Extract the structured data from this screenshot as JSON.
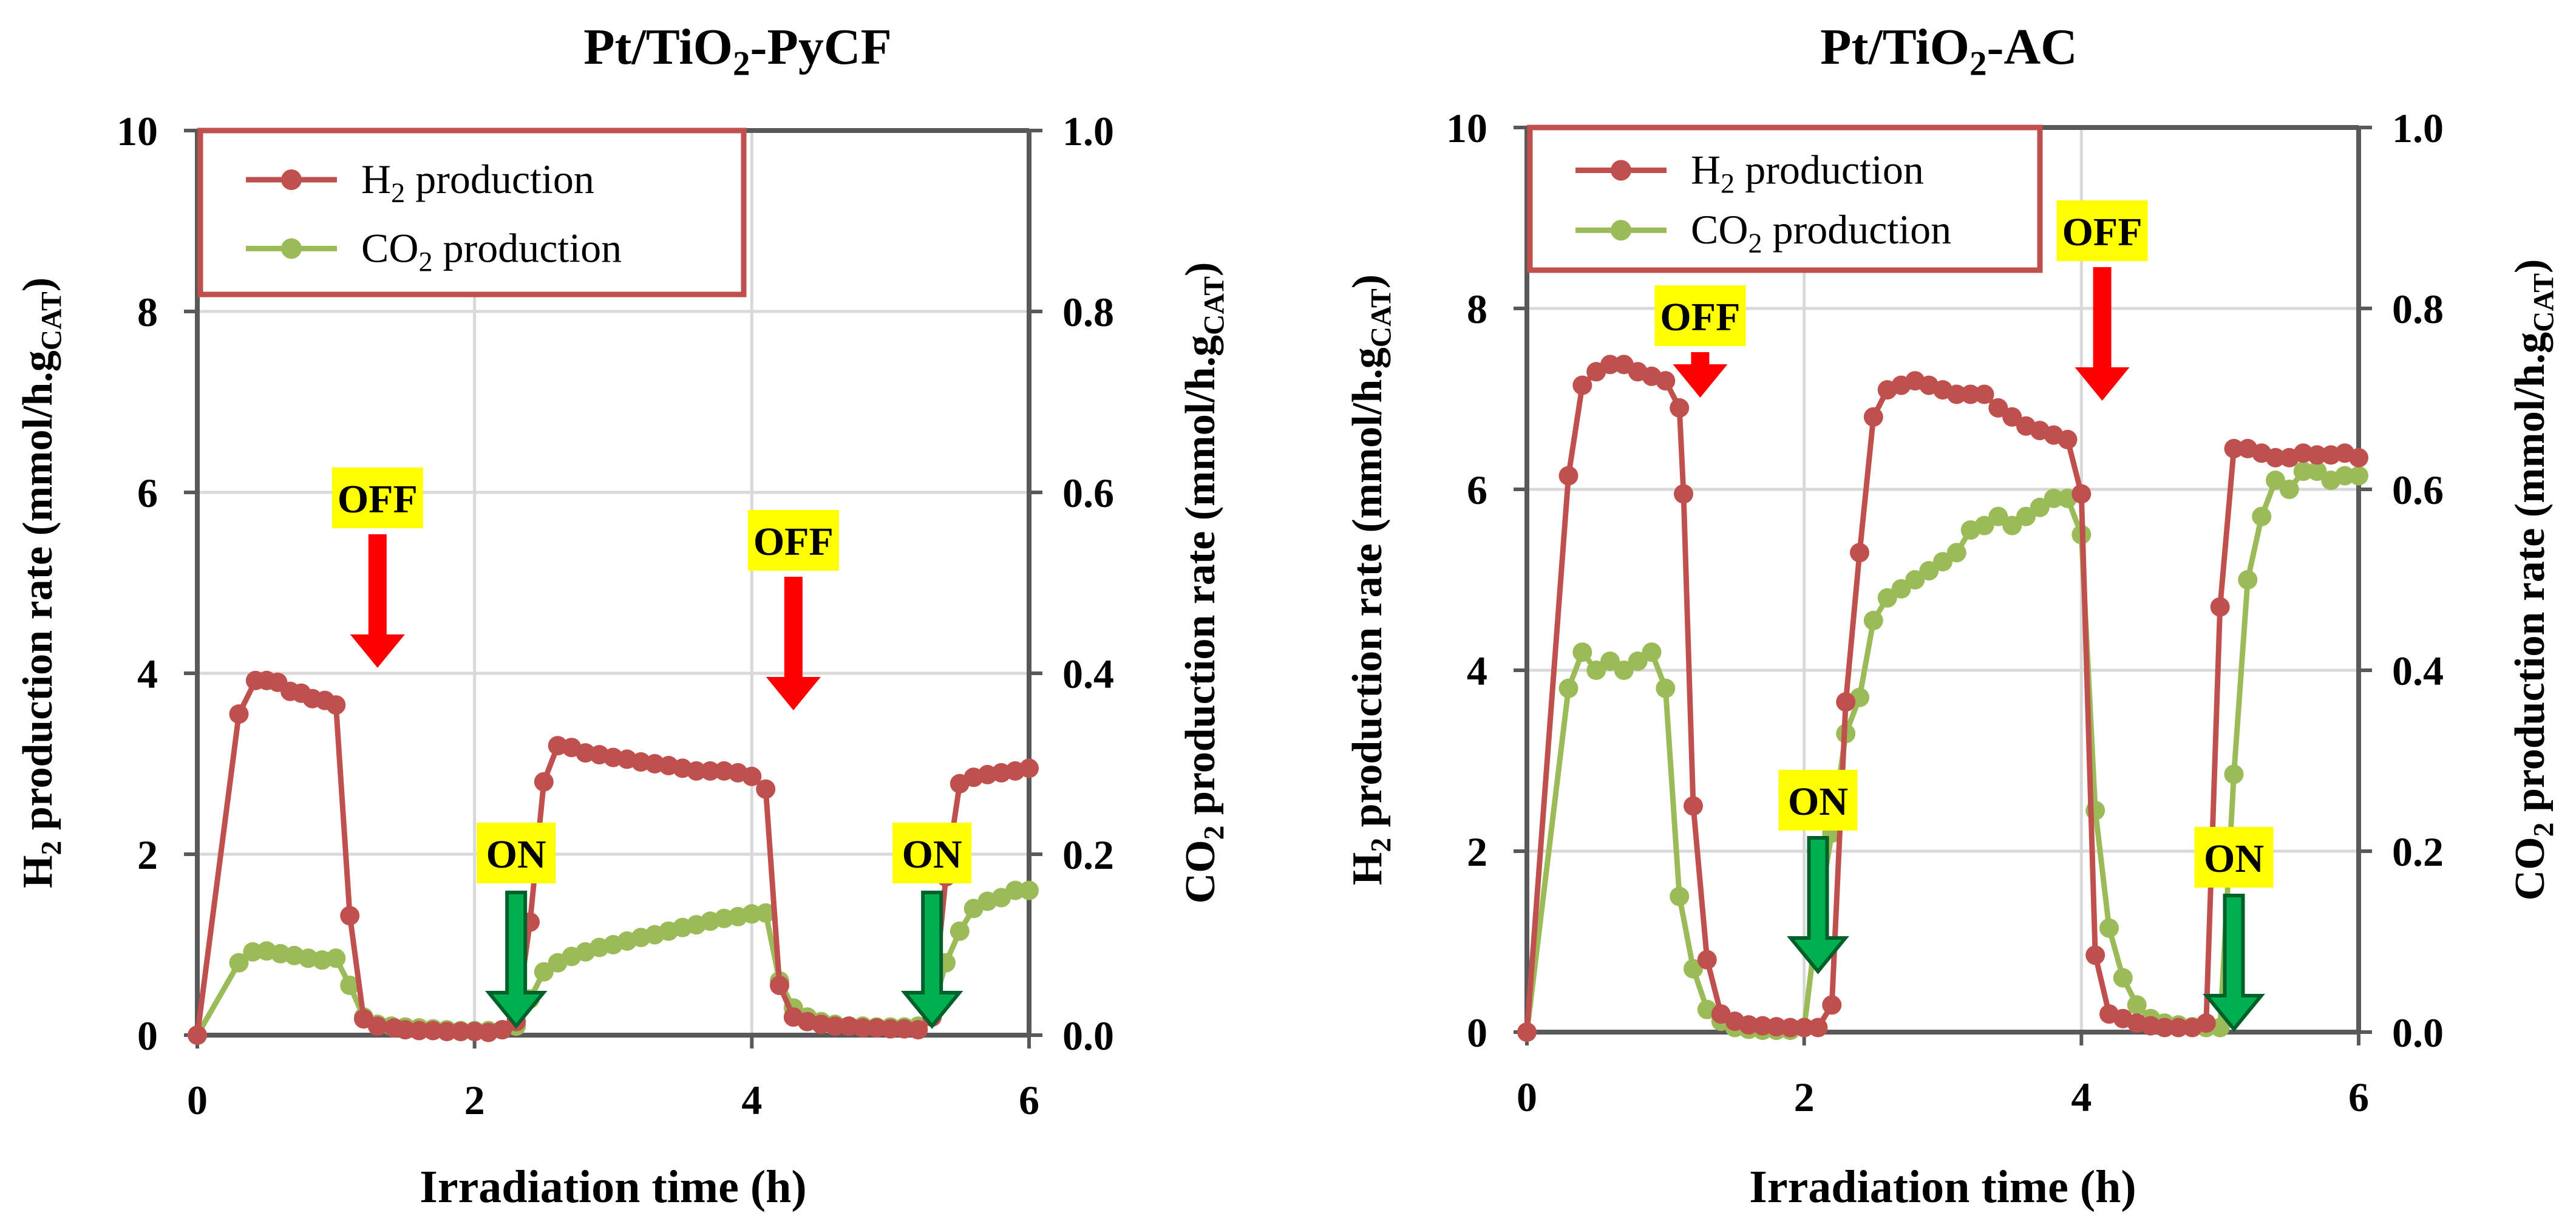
{
  "colors": {
    "h2": "#C0504D",
    "co2": "#9BBB59",
    "grid": "#D9D9D9",
    "axis": "#595959",
    "label_bg": "#FFFF00",
    "off_arrow": "#FF0000",
    "on_arrow": "#00B050",
    "on_arrow_edge": "#00602A"
  },
  "legend": {
    "h2_label": "H₂ production",
    "co2_label": "CO₂ production"
  },
  "chart_data": [
    {
      "type": "line",
      "title": "Pt/TiO₂-PyCF",
      "xlabel": "Irradiation time (h)",
      "ylabel_left": "H₂ production rate (mmol/h.gCAT)",
      "ylabel_right": "CO₂ production rate (mmol/h.gCAT)",
      "xlim": [
        0,
        6
      ],
      "ylim_left": [
        0,
        10
      ],
      "ylim_right": [
        0,
        1
      ],
      "x_ticks": [
        "0",
        "2",
        "4",
        "6"
      ],
      "y_left_ticks": [
        "0",
        "2",
        "4",
        "6",
        "8",
        "10"
      ],
      "y_right_ticks": [
        "0.0",
        "0.2",
        "0.4",
        "0.6",
        "0.8",
        "1.0"
      ],
      "series": [
        {
          "name": "H₂ production",
          "axis": "left",
          "x": [
            0,
            0.3,
            0.42,
            0.5,
            0.58,
            0.67,
            0.75,
            0.83,
            0.92,
            1.0,
            1.1,
            1.2,
            1.3,
            1.42,
            1.5,
            1.6,
            1.7,
            1.8,
            1.9,
            2.0,
            2.1,
            2.2,
            2.3,
            2.4,
            2.5,
            2.6,
            2.7,
            2.8,
            2.9,
            3.0,
            3.1,
            3.2,
            3.3,
            3.4,
            3.5,
            3.6,
            3.7,
            3.8,
            3.9,
            4.0,
            4.1,
            4.2,
            4.3,
            4.4,
            4.5,
            4.6,
            4.7,
            4.8,
            4.9,
            5.0,
            5.1,
            5.2,
            5.3,
            5.4,
            5.5,
            5.6,
            5.7,
            5.8,
            5.9,
            6.0
          ],
          "values": [
            0,
            3.55,
            3.92,
            3.92,
            3.9,
            3.8,
            3.78,
            3.72,
            3.7,
            3.65,
            1.32,
            0.18,
            0.1,
            0.08,
            0.06,
            0.05,
            0.05,
            0.04,
            0.04,
            0.04,
            0.03,
            0.06,
            0.15,
            1.25,
            2.8,
            3.2,
            3.18,
            3.12,
            3.1,
            3.07,
            3.05,
            3.02,
            3.0,
            2.98,
            2.95,
            2.92,
            2.92,
            2.92,
            2.9,
            2.86,
            2.72,
            0.55,
            0.2,
            0.15,
            0.12,
            0.1,
            0.1,
            0.08,
            0.08,
            0.07,
            0.07,
            0.06,
            0.2,
            1.75,
            2.78,
            2.85,
            2.88,
            2.9,
            2.92,
            2.95
          ]
        },
        {
          "name": "CO₂ production",
          "axis": "right",
          "x": [
            0,
            0.3,
            0.4,
            0.5,
            0.6,
            0.7,
            0.8,
            0.9,
            1.0,
            1.1,
            1.2,
            1.3,
            1.4,
            1.5,
            1.6,
            1.7,
            1.8,
            1.9,
            2.0,
            2.1,
            2.2,
            2.3,
            2.4,
            2.5,
            2.6,
            2.7,
            2.8,
            2.9,
            3.0,
            3.1,
            3.2,
            3.3,
            3.4,
            3.5,
            3.6,
            3.7,
            3.8,
            3.9,
            4.0,
            4.1,
            4.2,
            4.3,
            4.4,
            4.5,
            4.6,
            4.7,
            4.8,
            4.9,
            5.0,
            5.1,
            5.2,
            5.3,
            5.4,
            5.5,
            5.6,
            5.7,
            5.8,
            5.9,
            6.0
          ],
          "values": [
            0,
            0.08,
            0.092,
            0.093,
            0.09,
            0.088,
            0.085,
            0.083,
            0.085,
            0.055,
            0.02,
            0.012,
            0.01,
            0.009,
            0.008,
            0.007,
            0.006,
            0.005,
            0.005,
            0.005,
            0.006,
            0.01,
            0.04,
            0.07,
            0.08,
            0.087,
            0.092,
            0.097,
            0.1,
            0.104,
            0.108,
            0.111,
            0.115,
            0.119,
            0.122,
            0.126,
            0.129,
            0.131,
            0.134,
            0.135,
            0.06,
            0.03,
            0.02,
            0.015,
            0.012,
            0.01,
            0.01,
            0.009,
            0.009,
            0.009,
            0.01,
            0.025,
            0.08,
            0.115,
            0.14,
            0.148,
            0.152,
            0.16,
            0.16
          ]
        }
      ],
      "annotations": [
        {
          "text": "OFF",
          "x": 1.3,
          "arrow": "off"
        },
        {
          "text": "OFF",
          "x": 4.3,
          "arrow": "off"
        },
        {
          "text": "ON",
          "x": 2.3,
          "arrow": "on"
        },
        {
          "text": "ON",
          "x": 5.3,
          "arrow": "on"
        }
      ]
    },
    {
      "type": "line",
      "title": "Pt/TiO₂-AC",
      "xlabel": "Irradiation time (h)",
      "ylabel_left": "H₂ production rate (mmol/h.gCAT)",
      "ylabel_right": "CO₂ production rate (mmol/h.gCAT)",
      "xlim": [
        0,
        6
      ],
      "ylim_left": [
        0,
        10
      ],
      "ylim_right": [
        0,
        1
      ],
      "x_ticks": [
        "0",
        "2",
        "4",
        "6"
      ],
      "y_left_ticks": [
        "0",
        "2",
        "4",
        "6",
        "8",
        "10"
      ],
      "y_right_ticks": [
        "0.0",
        "0.2",
        "0.4",
        "0.6",
        "0.8",
        "1.0"
      ],
      "series": [
        {
          "name": "H₂ production",
          "axis": "left",
          "x": [
            0,
            0.3,
            0.4,
            0.5,
            0.6,
            0.7,
            0.8,
            0.9,
            1.0,
            1.1,
            1.13,
            1.2,
            1.3,
            1.4,
            1.5,
            1.6,
            1.7,
            1.8,
            1.9,
            2.0,
            2.1,
            2.2,
            2.3,
            2.4,
            2.5,
            2.6,
            2.7,
            2.8,
            2.9,
            3.0,
            3.1,
            3.2,
            3.3,
            3.4,
            3.5,
            3.6,
            3.7,
            3.8,
            3.9,
            4.0,
            4.1,
            4.2,
            4.3,
            4.4,
            4.5,
            4.6,
            4.7,
            4.8,
            4.9,
            5.0,
            5.1,
            5.2,
            5.3,
            5.4,
            5.5,
            5.6,
            5.7,
            5.8,
            5.9,
            6.0
          ],
          "values": [
            0,
            6.15,
            7.15,
            7.3,
            7.38,
            7.38,
            7.3,
            7.25,
            7.2,
            6.9,
            5.95,
            2.5,
            0.8,
            0.2,
            0.12,
            0.08,
            0.07,
            0.06,
            0.05,
            0.05,
            0.05,
            0.3,
            3.65,
            5.3,
            6.8,
            7.1,
            7.15,
            7.2,
            7.15,
            7.1,
            7.05,
            7.05,
            7.05,
            6.9,
            6.8,
            6.7,
            6.65,
            6.6,
            6.55,
            5.95,
            0.85,
            0.2,
            0.15,
            0.1,
            0.07,
            0.05,
            0.05,
            0.05,
            0.1,
            4.7,
            6.45,
            6.45,
            6.4,
            6.35,
            6.35,
            6.4,
            6.38,
            6.38,
            6.4,
            6.35
          ]
        },
        {
          "name": "CO₂ production",
          "axis": "right",
          "x": [
            0,
            0.3,
            0.4,
            0.5,
            0.6,
            0.7,
            0.8,
            0.9,
            1.0,
            1.1,
            1.2,
            1.3,
            1.4,
            1.5,
            1.6,
            1.7,
            1.8,
            1.9,
            2.0,
            2.1,
            2.2,
            2.3,
            2.4,
            2.5,
            2.6,
            2.7,
            2.8,
            2.9,
            3.0,
            3.1,
            3.2,
            3.3,
            3.4,
            3.5,
            3.6,
            3.7,
            3.8,
            3.9,
            4.0,
            4.1,
            4.2,
            4.3,
            4.4,
            4.5,
            4.6,
            4.7,
            4.8,
            4.9,
            5.0,
            5.1,
            5.2,
            5.3,
            5.4,
            5.5,
            5.6,
            5.7,
            5.8,
            5.9,
            6.0
          ],
          "values": [
            0,
            0.38,
            0.42,
            0.4,
            0.41,
            0.4,
            0.41,
            0.42,
            0.38,
            0.15,
            0.07,
            0.025,
            0.012,
            0.005,
            0.003,
            0.002,
            0.002,
            0.002,
            0.005,
            0.13,
            0.22,
            0.33,
            0.37,
            0.455,
            0.48,
            0.49,
            0.5,
            0.51,
            0.52,
            0.53,
            0.555,
            0.56,
            0.57,
            0.56,
            0.57,
            0.58,
            0.59,
            0.59,
            0.55,
            0.245,
            0.115,
            0.06,
            0.03,
            0.015,
            0.01,
            0.008,
            0.006,
            0.005,
            0.005,
            0.285,
            0.5,
            0.57,
            0.61,
            0.6,
            0.62,
            0.62,
            0.61,
            0.615,
            0.615
          ]
        }
      ],
      "annotations": [
        {
          "text": "OFF",
          "x": 1.25,
          "arrow": "off"
        },
        {
          "text": "OFF",
          "x": 4.15,
          "arrow": "off"
        },
        {
          "text": "ON",
          "x": 2.1,
          "arrow": "on"
        },
        {
          "text": "ON",
          "x": 5.1,
          "arrow": "on"
        }
      ]
    }
  ]
}
